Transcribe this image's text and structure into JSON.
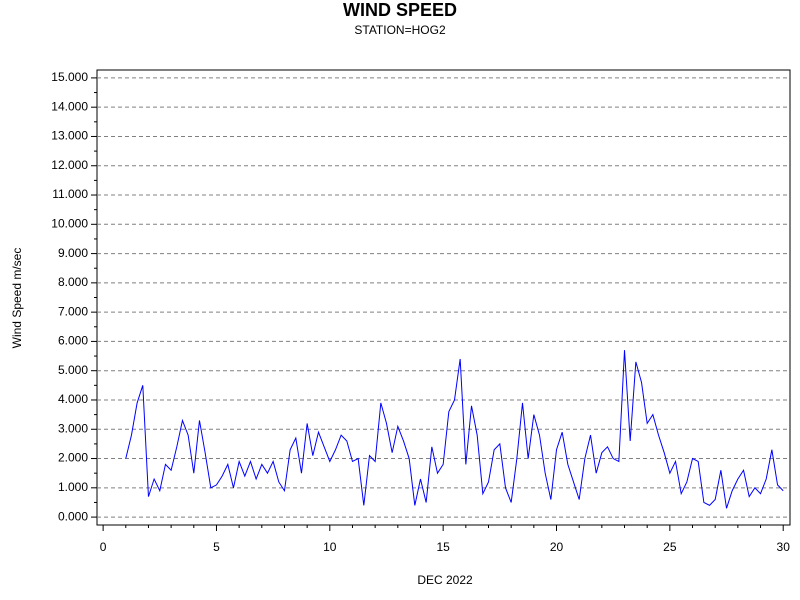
{
  "chart_data": {
    "type": "line",
    "title": "WIND SPEED",
    "subtitle": "STATION=HOG2",
    "ylabel": "Wind Speed m/sec",
    "xlabel": "DEC 2022",
    "color": "#0000ff",
    "grid": true,
    "xlim": [
      -0.27,
      30.3
    ],
    "ylim": [
      -0.27,
      15.27
    ],
    "xticks": [
      0,
      5,
      10,
      15,
      20,
      25,
      30
    ],
    "yticks": [
      {
        "value": 0,
        "label": "0.000"
      },
      {
        "value": 1,
        "label": "1.000"
      },
      {
        "value": 2,
        "label": "2.000"
      },
      {
        "value": 3,
        "label": "3.000"
      },
      {
        "value": 4,
        "label": "4.000"
      },
      {
        "value": 5,
        "label": "5.000"
      },
      {
        "value": 6,
        "label": "6.000"
      },
      {
        "value": 7,
        "label": "7.000"
      },
      {
        "value": 8,
        "label": "8.000"
      },
      {
        "value": 9,
        "label": "9.000"
      },
      {
        "value": 10,
        "label": "10.000"
      },
      {
        "value": 11,
        "label": "11.000"
      },
      {
        "value": 12,
        "label": "12.000"
      },
      {
        "value": 13,
        "label": "13.000"
      },
      {
        "value": 14,
        "label": "14.000"
      },
      {
        "value": 15,
        "label": "15.000"
      }
    ],
    "x": [
      1,
      1.25,
      1.5,
      1.75,
      2,
      2.25,
      2.5,
      2.75,
      3,
      3.25,
      3.5,
      3.75,
      4,
      4.25,
      4.5,
      4.75,
      5,
      5.25,
      5.5,
      5.75,
      6,
      6.25,
      6.5,
      6.75,
      7,
      7.25,
      7.5,
      7.75,
      8,
      8.25,
      8.5,
      8.75,
      9,
      9.25,
      9.5,
      9.75,
      10,
      10.25,
      10.5,
      10.75,
      11,
      11.25,
      11.5,
      11.75,
      12,
      12.25,
      12.5,
      12.75,
      13,
      13.25,
      13.5,
      13.75,
      14,
      14.25,
      14.5,
      14.75,
      15,
      15.25,
      15.5,
      15.75,
      16,
      16.25,
      16.5,
      16.75,
      17,
      17.25,
      17.5,
      17.75,
      18,
      18.25,
      18.5,
      18.75,
      19,
      19.25,
      19.5,
      19.75,
      20,
      20.25,
      20.5,
      20.75,
      21,
      21.25,
      21.5,
      21.75,
      22,
      22.25,
      22.5,
      22.75,
      23,
      23.25,
      23.5,
      23.75,
      24,
      24.25,
      24.5,
      24.75,
      25,
      25.25,
      25.5,
      25.75,
      26,
      26.25,
      26.5,
      26.75,
      27,
      27.25,
      27.5,
      27.75,
      28,
      28.25,
      28.5,
      28.75,
      29,
      29.25,
      29.5,
      29.75,
      30
    ],
    "values": [
      2.0,
      2.8,
      3.9,
      4.5,
      0.7,
      1.3,
      0.9,
      1.8,
      1.6,
      2.4,
      3.3,
      2.8,
      1.5,
      3.3,
      2.2,
      1.0,
      1.1,
      1.4,
      1.8,
      1.0,
      1.9,
      1.4,
      1.9,
      1.3,
      1.8,
      1.5,
      1.9,
      1.2,
      0.9,
      2.3,
      2.7,
      1.5,
      3.2,
      2.1,
      2.9,
      2.4,
      1.9,
      2.3,
      2.8,
      2.6,
      1.9,
      2.0,
      0.4,
      2.1,
      1.9,
      3.9,
      3.2,
      2.2,
      3.1,
      2.6,
      2.0,
      0.4,
      1.3,
      0.5,
      2.4,
      1.5,
      1.8,
      3.6,
      4.0,
      5.4,
      1.8,
      3.8,
      2.8,
      0.8,
      1.2,
      2.3,
      2.5,
      1.0,
      0.5,
      2.0,
      3.9,
      2.0,
      3.5,
      2.8,
      1.5,
      0.6,
      2.3,
      2.9,
      1.8,
      1.2,
      0.6,
      2.0,
      2.8,
      1.5,
      2.2,
      2.4,
      2.0,
      1.9,
      5.7,
      2.6,
      5.3,
      4.6,
      3.2,
      3.5,
      2.8,
      2.2,
      1.5,
      1.9,
      0.8,
      1.2,
      2.0,
      1.9,
      0.5,
      0.4,
      0.6,
      1.6,
      0.3,
      0.9,
      1.3,
      1.6,
      0.7,
      1.0,
      0.8,
      1.3,
      2.3,
      1.1,
      0.9
    ]
  }
}
